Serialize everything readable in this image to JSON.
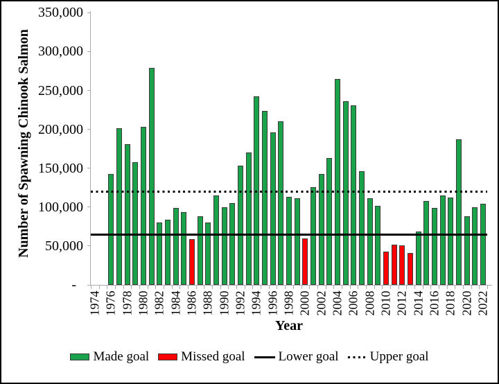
{
  "colors": {
    "made_goal": "#19A24A",
    "missed_goal": "#FF0000",
    "axis": "#ABABAB",
    "bar_outline": "#3A3A3A",
    "goal_line": "#000000"
  },
  "legend": {
    "items": [
      {
        "label": "Made goal",
        "marker": "swatch",
        "color": "#19A24A"
      },
      {
        "label": "Missed goal",
        "marker": "swatch",
        "color": "#FF0000"
      },
      {
        "label": "Lower goal",
        "marker": "solid-line"
      },
      {
        "label": "Upper goal",
        "marker": "dotted-line"
      }
    ]
  },
  "chart_data": {
    "type": "bar",
    "title": "",
    "xlabel": "Year",
    "ylabel": "Number of Spawning Chinook Salmon",
    "ylim": [
      0,
      350000
    ],
    "y_tick_step": 50000,
    "y_tick_labels": [
      "-  ",
      "50,000",
      "100,000",
      "150,000",
      "200,000",
      "250,000",
      "300,000",
      "350,000"
    ],
    "x_first_year": 1974,
    "x_last_year": 2022,
    "x_labeled_ticks": [
      "1974",
      "1976",
      "1978",
      "1980",
      "1982",
      "1984",
      "1986",
      "1988",
      "1990",
      "1992",
      "1994",
      "1996",
      "1998",
      "2000",
      "2002",
      "2004",
      "2006",
      "2008",
      "2010",
      "2012",
      "2014",
      "2016",
      "2018",
      "2020",
      "2022"
    ],
    "lower_goal": 65000,
    "upper_goal": 120000,
    "grid": false,
    "legend_position": "bottom",
    "series": [
      {
        "year": 1976,
        "value": 143000,
        "made_goal": true
      },
      {
        "year": 1977,
        "value": 201000,
        "made_goal": true
      },
      {
        "year": 1978,
        "value": 181000,
        "made_goal": true
      },
      {
        "year": 1979,
        "value": 158000,
        "made_goal": true
      },
      {
        "year": 1980,
        "value": 203000,
        "made_goal": true
      },
      {
        "year": 1981,
        "value": 279000,
        "made_goal": true
      },
      {
        "year": 1982,
        "value": 80000,
        "made_goal": true
      },
      {
        "year": 1983,
        "value": 84000,
        "made_goal": true
      },
      {
        "year": 1984,
        "value": 99000,
        "made_goal": true
      },
      {
        "year": 1985,
        "value": 94000,
        "made_goal": true
      },
      {
        "year": 1986,
        "value": 59000,
        "made_goal": false
      },
      {
        "year": 1987,
        "value": 88000,
        "made_goal": true
      },
      {
        "year": 1988,
        "value": 80000,
        "made_goal": true
      },
      {
        "year": 1989,
        "value": 115000,
        "made_goal": true
      },
      {
        "year": 1990,
        "value": 100000,
        "made_goal": true
      },
      {
        "year": 1991,
        "value": 105000,
        "made_goal": true
      },
      {
        "year": 1992,
        "value": 153000,
        "made_goal": true
      },
      {
        "year": 1993,
        "value": 170000,
        "made_goal": true
      },
      {
        "year": 1994,
        "value": 242000,
        "made_goal": true
      },
      {
        "year": 1995,
        "value": 224000,
        "made_goal": true
      },
      {
        "year": 1996,
        "value": 196000,
        "made_goal": true
      },
      {
        "year": 1997,
        "value": 210000,
        "made_goal": true
      },
      {
        "year": 1998,
        "value": 113000,
        "made_goal": true
      },
      {
        "year": 1999,
        "value": 111000,
        "made_goal": true
      },
      {
        "year": 2000,
        "value": 60000,
        "made_goal": false
      },
      {
        "year": 2001,
        "value": 126000,
        "made_goal": true
      },
      {
        "year": 2002,
        "value": 143000,
        "made_goal": true
      },
      {
        "year": 2003,
        "value": 163000,
        "made_goal": true
      },
      {
        "year": 2004,
        "value": 265000,
        "made_goal": true
      },
      {
        "year": 2005,
        "value": 236000,
        "made_goal": true
      },
      {
        "year": 2006,
        "value": 231000,
        "made_goal": true
      },
      {
        "year": 2007,
        "value": 146000,
        "made_goal": true
      },
      {
        "year": 2008,
        "value": 111000,
        "made_goal": true
      },
      {
        "year": 2009,
        "value": 102000,
        "made_goal": true
      },
      {
        "year": 2010,
        "value": 43000,
        "made_goal": false
      },
      {
        "year": 2011,
        "value": 52000,
        "made_goal": false
      },
      {
        "year": 2012,
        "value": 51000,
        "made_goal": false
      },
      {
        "year": 2013,
        "value": 41000,
        "made_goal": false
      },
      {
        "year": 2014,
        "value": 69000,
        "made_goal": true
      },
      {
        "year": 2015,
        "value": 108000,
        "made_goal": true
      },
      {
        "year": 2016,
        "value": 99000,
        "made_goal": true
      },
      {
        "year": 2017,
        "value": 115000,
        "made_goal": true
      },
      {
        "year": 2018,
        "value": 112000,
        "made_goal": true
      },
      {
        "year": 2019,
        "value": 187000,
        "made_goal": true
      },
      {
        "year": 2020,
        "value": 88000,
        "made_goal": true
      },
      {
        "year": 2021,
        "value": 100000,
        "made_goal": true
      },
      {
        "year": 2022,
        "value": 104000,
        "made_goal": true
      }
    ]
  }
}
